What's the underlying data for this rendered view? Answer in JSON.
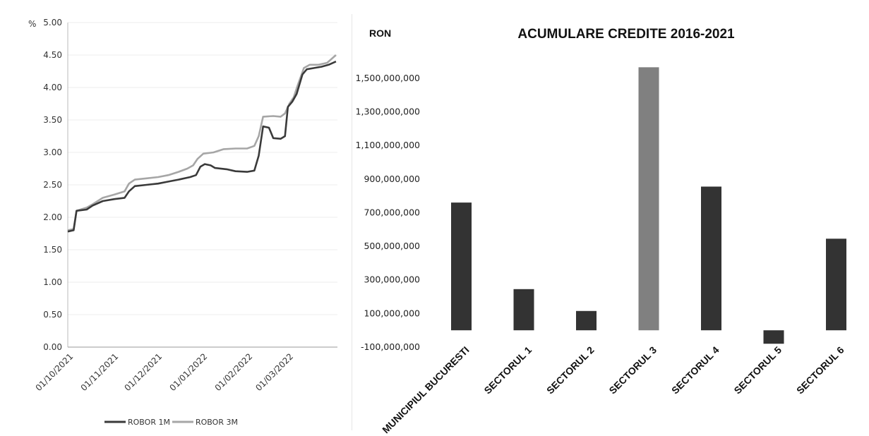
{
  "chart_data": [
    {
      "type": "line",
      "ylabel": "%",
      "ylim": [
        0,
        5
      ],
      "yticks": [
        "0.00",
        "0.50",
        "1.00",
        "1.50",
        "2.00",
        "2.50",
        "3.00",
        "3.50",
        "4.00",
        "4.50",
        "5.00"
      ],
      "xticks": [
        "01/10/2021",
        "01/11/2021",
        "01/12/2021",
        "01/01/2022",
        "01/02/2022",
        "01/03/2022"
      ],
      "xlim": [
        "2021-09-27",
        "2022-03-31"
      ],
      "grid": true,
      "legend_position": "bottom",
      "colors": {
        "ROBOR 1M": "#3a3a3a",
        "ROBOR 3M": "#a6a6a6"
      },
      "series": [
        {
          "name": "ROBOR 1M",
          "points": [
            [
              "2021-09-27",
              1.78
            ],
            [
              "2021-10-01",
              1.8
            ],
            [
              "2021-10-03",
              2.1
            ],
            [
              "2021-10-10",
              2.12
            ],
            [
              "2021-10-14",
              2.18
            ],
            [
              "2021-10-21",
              2.25
            ],
            [
              "2021-10-29",
              2.28
            ],
            [
              "2021-11-05",
              2.3
            ],
            [
              "2021-11-08",
              2.4
            ],
            [
              "2021-11-12",
              2.48
            ],
            [
              "2021-11-20",
              2.5
            ],
            [
              "2021-11-28",
              2.52
            ],
            [
              "2021-12-05",
              2.55
            ],
            [
              "2021-12-12",
              2.58
            ],
            [
              "2021-12-20",
              2.62
            ],
            [
              "2021-12-24",
              2.65
            ],
            [
              "2021-12-27",
              2.78
            ],
            [
              "2021-12-30",
              2.82
            ],
            [
              "2022-01-03",
              2.8
            ],
            [
              "2022-01-06",
              2.76
            ],
            [
              "2022-01-14",
              2.74
            ],
            [
              "2022-01-20",
              2.71
            ],
            [
              "2022-01-28",
              2.7
            ],
            [
              "2022-02-02",
              2.72
            ],
            [
              "2022-02-05",
              2.95
            ],
            [
              "2022-02-08",
              3.4
            ],
            [
              "2022-02-12",
              3.38
            ],
            [
              "2022-02-15",
              3.22
            ],
            [
              "2022-02-20",
              3.21
            ],
            [
              "2022-02-23",
              3.25
            ],
            [
              "2022-02-25",
              3.7
            ],
            [
              "2022-02-28",
              3.78
            ],
            [
              "2022-03-03",
              3.9
            ],
            [
              "2022-03-07",
              4.2
            ],
            [
              "2022-03-10",
              4.28
            ],
            [
              "2022-03-15",
              4.3
            ],
            [
              "2022-03-20",
              4.32
            ],
            [
              "2022-03-25",
              4.35
            ],
            [
              "2022-03-30",
              4.4
            ]
          ]
        },
        {
          "name": "ROBOR 3M",
          "points": [
            [
              "2021-09-27",
              1.8
            ],
            [
              "2021-10-01",
              1.82
            ],
            [
              "2021-10-03",
              2.1
            ],
            [
              "2021-10-10",
              2.15
            ],
            [
              "2021-10-14",
              2.2
            ],
            [
              "2021-10-21",
              2.3
            ],
            [
              "2021-10-29",
              2.35
            ],
            [
              "2021-11-05",
              2.4
            ],
            [
              "2021-11-08",
              2.52
            ],
            [
              "2021-11-12",
              2.58
            ],
            [
              "2021-11-20",
              2.6
            ],
            [
              "2021-11-28",
              2.62
            ],
            [
              "2021-12-05",
              2.65
            ],
            [
              "2021-12-12",
              2.7
            ],
            [
              "2021-12-18",
              2.75
            ],
            [
              "2021-12-22",
              2.8
            ],
            [
              "2021-12-25",
              2.9
            ],
            [
              "2021-12-29",
              2.98
            ],
            [
              "2022-01-05",
              3.0
            ],
            [
              "2022-01-12",
              3.05
            ],
            [
              "2022-01-20",
              3.06
            ],
            [
              "2022-01-28",
              3.06
            ],
            [
              "2022-02-02",
              3.1
            ],
            [
              "2022-02-05",
              3.25
            ],
            [
              "2022-02-08",
              3.55
            ],
            [
              "2022-02-15",
              3.56
            ],
            [
              "2022-02-20",
              3.55
            ],
            [
              "2022-02-23",
              3.6
            ],
            [
              "2022-02-26",
              3.75
            ],
            [
              "2022-03-01",
              3.85
            ],
            [
              "2022-03-04",
              4.05
            ],
            [
              "2022-03-08",
              4.3
            ],
            [
              "2022-03-12",
              4.35
            ],
            [
              "2022-03-18",
              4.35
            ],
            [
              "2022-03-24",
              4.38
            ],
            [
              "2022-03-30",
              4.5
            ]
          ]
        }
      ]
    },
    {
      "type": "bar",
      "title": "ACUMULARE CREDITE 2016-2021",
      "ylabel": "RON",
      "ylim": [
        -100000000,
        1600000000
      ],
      "yticks": [
        "-100,000,000",
        "100,000,000",
        "300,000,000",
        "500,000,000",
        "700,000,000",
        "900,000,000",
        "1,100,000,000",
        "1,300,000,000",
        "1,500,000,000"
      ],
      "ytick_values": [
        -100000000,
        100000000,
        300000000,
        500000000,
        700000000,
        900000000,
        1100000000,
        1300000000,
        1500000000
      ],
      "categories": [
        "MUNICIPIUL BUCURESTI",
        "SECTORUL 1",
        "SECTORUL 2",
        "SECTORUL 3",
        "SECTORUL 4",
        "SECTORUL 5",
        "SECTORUL 6"
      ],
      "values": [
        760000000,
        245000000,
        115000000,
        1565000000,
        855000000,
        -80000000,
        545000000
      ],
      "bar_colors": [
        "#333333",
        "#333333",
        "#333333",
        "#808080",
        "#333333",
        "#333333",
        "#333333"
      ],
      "grid": false
    }
  ]
}
